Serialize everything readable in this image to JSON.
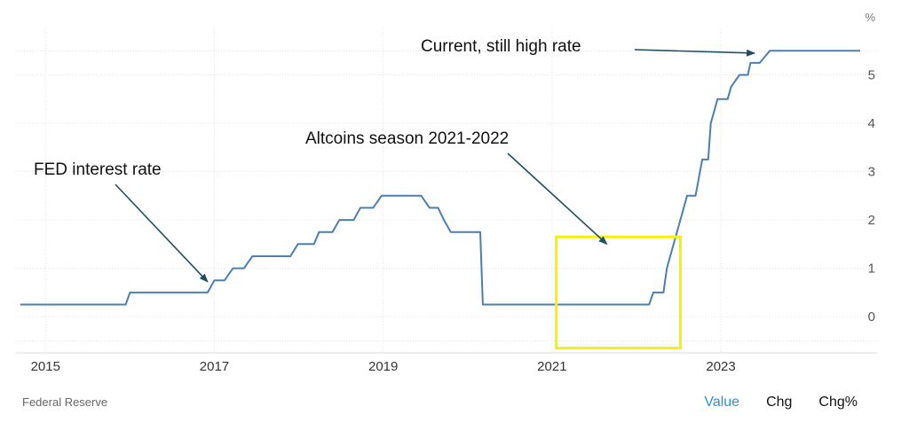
{
  "chart_data": {
    "type": "line",
    "unit": "%",
    "x_ticks": [
      2015,
      2017,
      2019,
      2021,
      2023
    ],
    "y_ticks": [
      0,
      1,
      2,
      3,
      4,
      5
    ],
    "xlim": [
      2014.65,
      2024.85
    ],
    "ylim": [
      -0.75,
      6.0
    ],
    "grid": true,
    "series": [
      {
        "color": "#4a7fb0",
        "points": [
          [
            2014.7,
            0.25
          ],
          [
            2015.95,
            0.25
          ],
          [
            2016.0,
            0.5
          ],
          [
            2016.92,
            0.5
          ],
          [
            2017.0,
            0.75
          ],
          [
            2017.12,
            0.75
          ],
          [
            2017.22,
            1.0
          ],
          [
            2017.35,
            1.0
          ],
          [
            2017.45,
            1.25
          ],
          [
            2017.9,
            1.25
          ],
          [
            2017.99,
            1.5
          ],
          [
            2018.18,
            1.5
          ],
          [
            2018.24,
            1.75
          ],
          [
            2018.4,
            1.75
          ],
          [
            2018.48,
            2.0
          ],
          [
            2018.65,
            2.0
          ],
          [
            2018.73,
            2.25
          ],
          [
            2018.88,
            2.25
          ],
          [
            2018.98,
            2.5
          ],
          [
            2019.45,
            2.5
          ],
          [
            2019.55,
            2.25
          ],
          [
            2019.65,
            2.25
          ],
          [
            2019.72,
            2.0
          ],
          [
            2019.8,
            1.75
          ],
          [
            2020.15,
            1.75
          ],
          [
            2020.18,
            0.25
          ],
          [
            2022.15,
            0.25
          ],
          [
            2022.2,
            0.5
          ],
          [
            2022.32,
            0.5
          ],
          [
            2022.36,
            1.0
          ],
          [
            2022.52,
            2.0
          ],
          [
            2022.6,
            2.5
          ],
          [
            2022.7,
            2.5
          ],
          [
            2022.78,
            3.25
          ],
          [
            2022.85,
            3.25
          ],
          [
            2022.88,
            4.0
          ],
          [
            2022.96,
            4.5
          ],
          [
            2023.08,
            4.5
          ],
          [
            2023.12,
            4.75
          ],
          [
            2023.22,
            5.0
          ],
          [
            2023.32,
            5.0
          ],
          [
            2023.35,
            5.25
          ],
          [
            2023.46,
            5.25
          ],
          [
            2023.58,
            5.5
          ],
          [
            2024.65,
            5.5
          ]
        ]
      }
    ],
    "annotations": [
      {
        "text": "FED interest rate",
        "arrow_to": [
          2016.92,
          0.72
        ]
      },
      {
        "text": "Altcoins season 2021-2022",
        "arrow_to": [
          2021.65,
          1.5
        ]
      },
      {
        "text": "Current, still high rate",
        "arrow_to": [
          2023.4,
          5.45
        ]
      }
    ],
    "highlight_box": {
      "x": [
        2021.05,
        2022.52
      ],
      "y": [
        -0.65,
        1.65
      ],
      "color": "#f5f200"
    },
    "source": "Federal Reserve"
  },
  "footer": {
    "source": "Federal Reserve",
    "tabs": [
      {
        "label": "Value",
        "active": true
      },
      {
        "label": "Chg",
        "active": false
      },
      {
        "label": "Chg%",
        "active": false
      }
    ]
  }
}
